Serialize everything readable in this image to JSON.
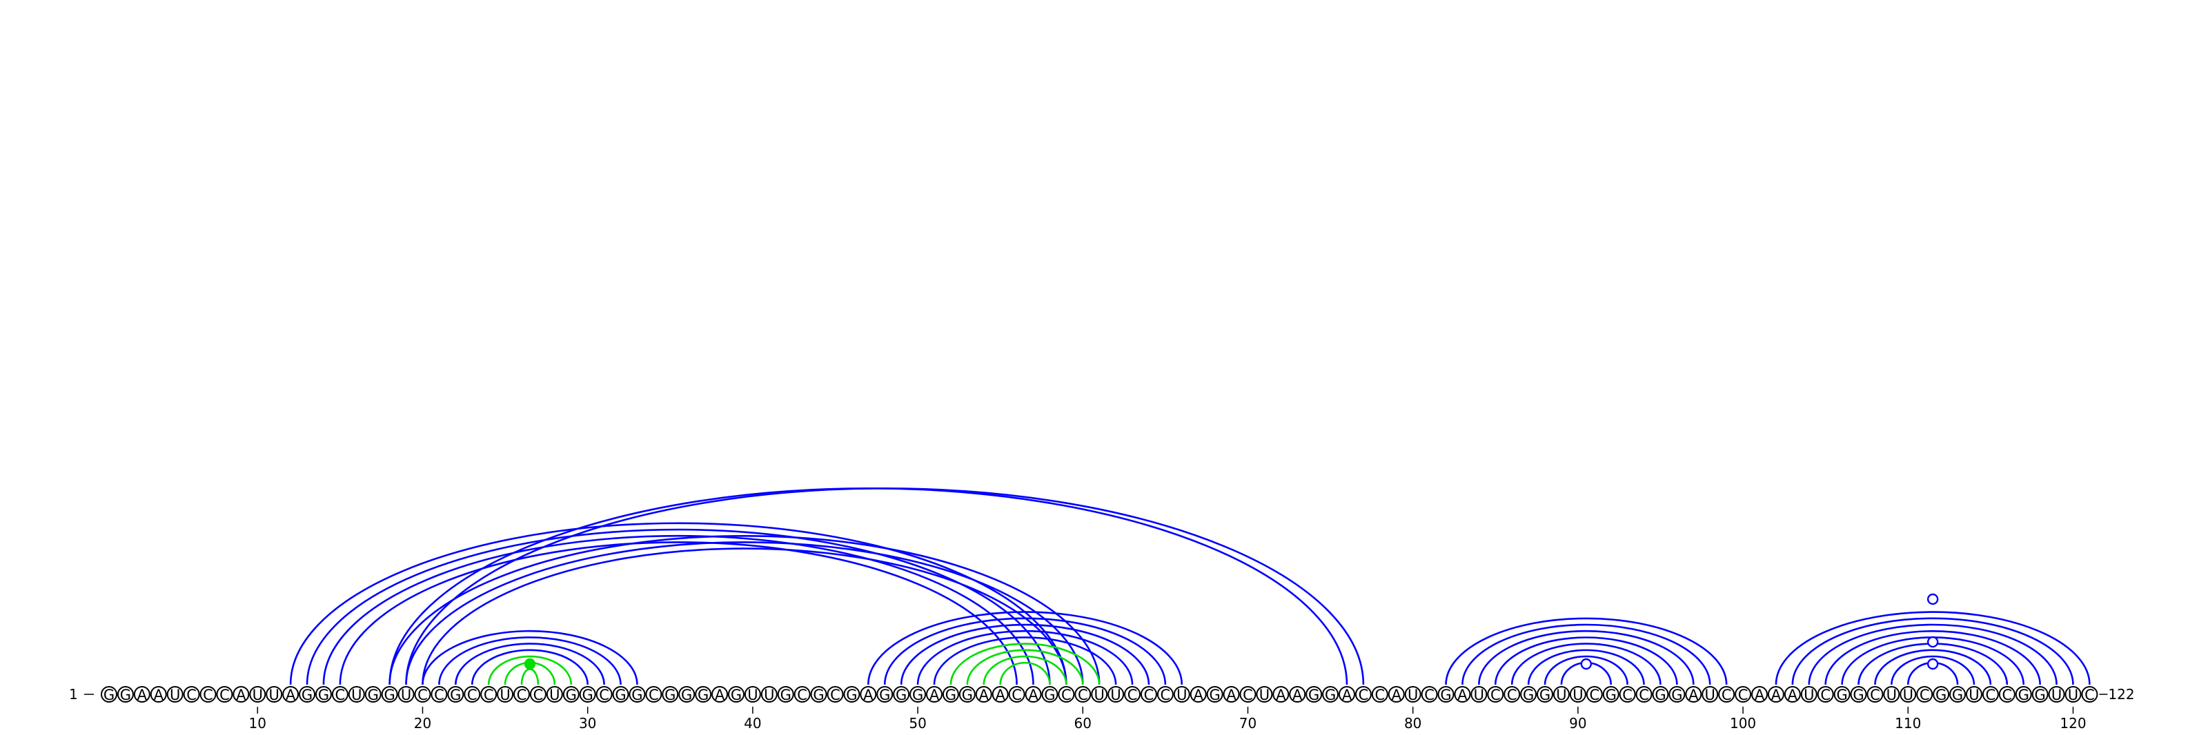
{
  "sequence": "GGAAUCCCAUUAGGCUGGUCCGCCUCCUGGCGGCGGGAGUUGCGCGAGGGAGGAACAGCCUUCCCUAGACUAAGGACCAUCGAUCCGGUUCGCCGGAUCCAAAUCGGCUUCGGUCCGGUUC",
  "start_label": "1",
  "end_label": "122",
  "tick_labels": [
    "10",
    "20",
    "30",
    "40",
    "50",
    "60",
    "70",
    "80",
    "90",
    "100",
    "110",
    "120"
  ],
  "colors": {
    "primary_arc": "#0000ff",
    "secondary_arc": "#00dd00",
    "circle_stroke": "#000000"
  },
  "arc_groups": [
    {
      "color": "secondary",
      "pairs": [
        [
          26,
          27
        ],
        [
          25,
          28
        ],
        [
          24,
          29
        ]
      ]
    },
    {
      "color": "primary",
      "pairs": [
        [
          20,
          33
        ],
        [
          21,
          32
        ],
        [
          22,
          31
        ],
        [
          23,
          30
        ]
      ]
    },
    {
      "color": "primary",
      "pairs": [
        [
          12,
          59
        ],
        [
          13,
          58
        ],
        [
          14,
          57
        ],
        [
          15,
          56
        ],
        [
          18,
          61
        ],
        [
          19,
          60
        ],
        [
          20,
          59
        ]
      ]
    },
    {
      "color": "primary",
      "pairs": [
        [
          19,
          77
        ],
        [
          18,
          76
        ]
      ]
    },
    {
      "color": "primary",
      "pairs": [
        [
          47,
          66
        ],
        [
          48,
          65
        ],
        [
          49,
          64
        ],
        [
          50,
          63
        ],
        [
          51,
          62
        ]
      ]
    },
    {
      "color": "secondary",
      "pairs": [
        [
          52,
          61
        ],
        [
          53,
          60
        ],
        [
          54,
          59
        ],
        [
          55,
          58
        ]
      ]
    },
    {
      "color": "primary",
      "pairs": [
        [
          82,
          99
        ],
        [
          83,
          98
        ],
        [
          84,
          97
        ],
        [
          85,
          96
        ],
        [
          86,
          95
        ],
        [
          87,
          94
        ],
        [
          88,
          93
        ],
        [
          89,
          92
        ]
      ]
    },
    {
      "color": "primary",
      "pairs": [
        [
          102,
          121
        ],
        [
          103,
          120
        ],
        [
          104,
          119
        ],
        [
          105,
          118
        ],
        [
          106,
          117
        ],
        [
          107,
          116
        ],
        [
          108,
          115
        ],
        [
          109,
          114
        ],
        [
          110,
          113
        ]
      ]
    }
  ],
  "markers": [
    {
      "between": [
        26,
        27
      ],
      "height": "small",
      "style": "filled",
      "color": "secondary"
    },
    {
      "between": [
        90,
        91
      ],
      "height": "small",
      "style": "open",
      "color": "primary"
    },
    {
      "between": [
        111,
        112
      ],
      "height": "small",
      "style": "open",
      "color": "primary"
    },
    {
      "between": [
        111,
        112
      ],
      "height": "medium",
      "style": "open",
      "color": "primary"
    },
    {
      "between": [
        111,
        112
      ],
      "height": "large",
      "style": "open",
      "color": "primary"
    }
  ]
}
